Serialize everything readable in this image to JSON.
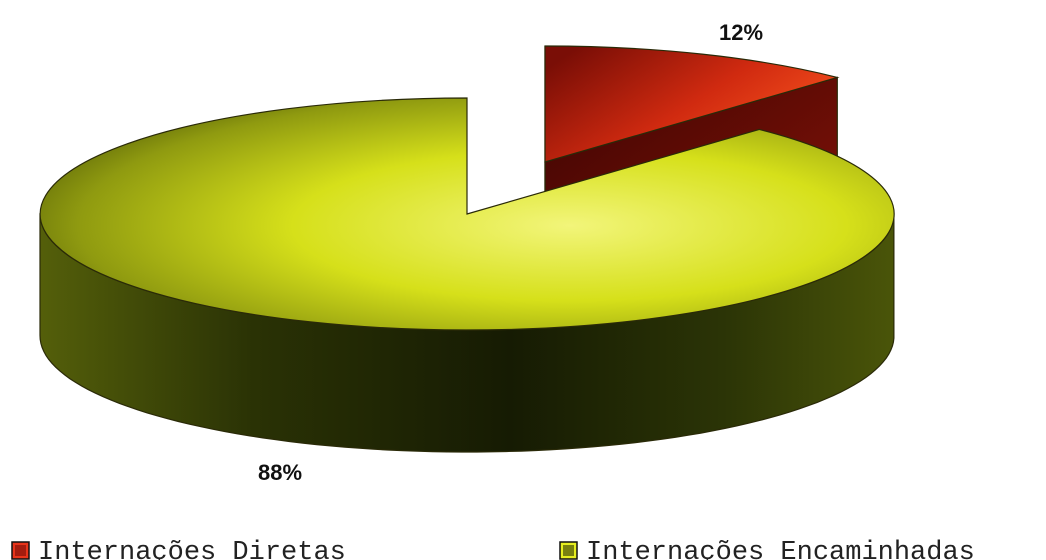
{
  "chart_data": {
    "type": "pie",
    "title": "",
    "style": "3d-exploded",
    "series": [
      {
        "name": "Internações Diretas",
        "value": 12,
        "label": "12%",
        "color": "#e8341a",
        "dark_color": "#6b0a06",
        "exploded": true
      },
      {
        "name": "Internações Encaminhadas",
        "value": 88,
        "label": "88%",
        "color": "#e6ee20",
        "dark_color": "#1e2604",
        "exploded": false
      }
    ],
    "legend": {
      "position": "bottom"
    }
  }
}
